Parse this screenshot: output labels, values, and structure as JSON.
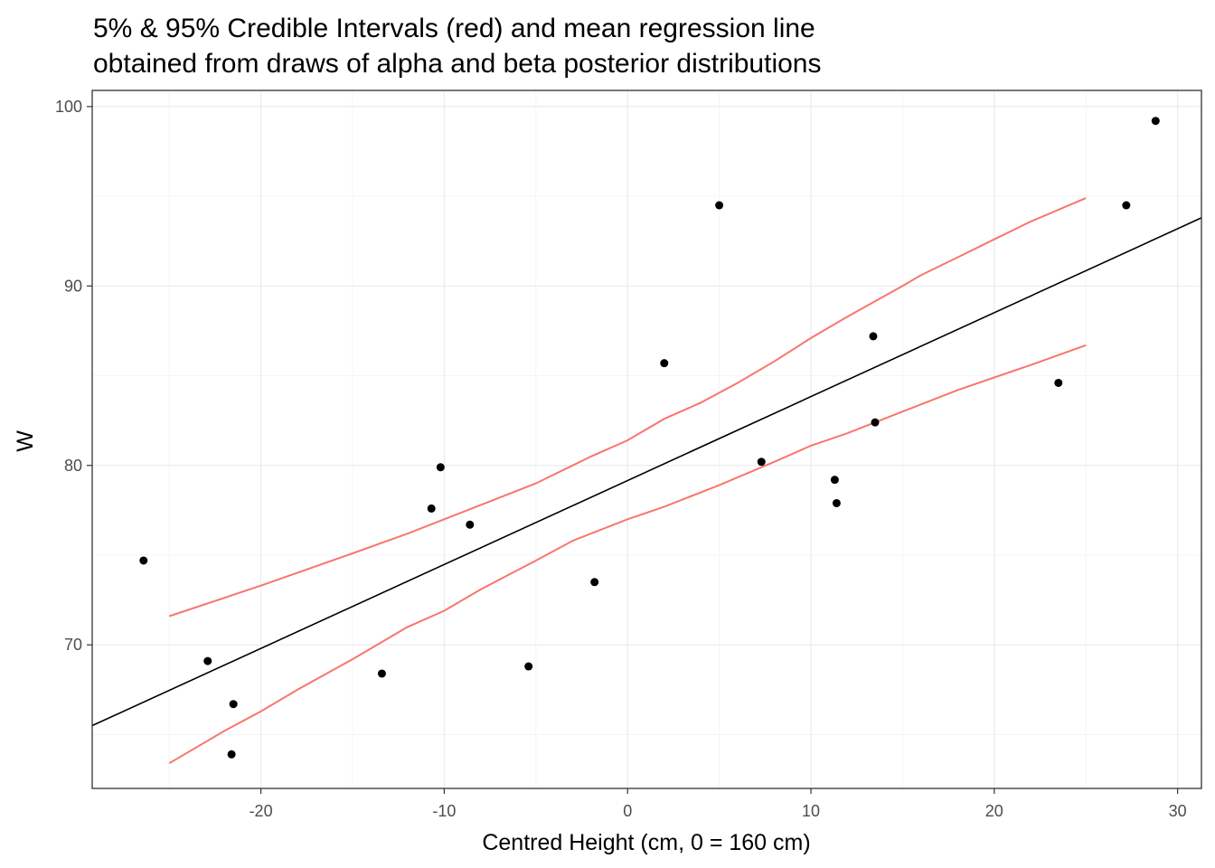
{
  "chart_data": {
    "type": "scatter",
    "title_lines": [
      "5% & 95% Credible Intervals (red) and mean regression line",
      "obtained from draws of alpha and beta posterior distributions"
    ],
    "xlabel": "Centred Height (cm, 0 = 160 cm)",
    "ylabel": "W",
    "xlim": [
      -29.2,
      31.3
    ],
    "ylim": [
      62.0,
      100.9
    ],
    "x_ticks": [
      -20,
      -10,
      0,
      10,
      20,
      30
    ],
    "x_tick_labels": [
      "-20",
      "-10",
      "0",
      "10",
      "20",
      "30"
    ],
    "y_ticks": [
      70,
      80,
      90,
      100
    ],
    "y_tick_labels": [
      "70",
      "80",
      "90",
      "100"
    ],
    "grid": true,
    "colors": {
      "points": "#000000",
      "mean_line": "#000000",
      "interval": "#F8766D",
      "grid_major": "#ebebeb",
      "grid_minor": "#f5f5f5",
      "panel_border": "#333333"
    },
    "points": [
      {
        "x": -26.4,
        "y": 74.7
      },
      {
        "x": -22.9,
        "y": 69.1
      },
      {
        "x": -21.5,
        "y": 66.7
      },
      {
        "x": -21.6,
        "y": 63.9
      },
      {
        "x": -13.4,
        "y": 68.4
      },
      {
        "x": -10.7,
        "y": 77.6
      },
      {
        "x": -10.2,
        "y": 79.9
      },
      {
        "x": -8.6,
        "y": 76.7
      },
      {
        "x": -5.4,
        "y": 68.8
      },
      {
        "x": -1.8,
        "y": 73.5
      },
      {
        "x": 2.0,
        "y": 85.7
      },
      {
        "x": 5.0,
        "y": 94.5
      },
      {
        "x": 7.3,
        "y": 80.2
      },
      {
        "x": 11.3,
        "y": 79.2
      },
      {
        "x": 11.4,
        "y": 77.9
      },
      {
        "x": 13.4,
        "y": 87.2
      },
      {
        "x": 13.5,
        "y": 82.4
      },
      {
        "x": 23.5,
        "y": 84.6
      },
      {
        "x": 27.2,
        "y": 94.5
      },
      {
        "x": 28.8,
        "y": 99.2
      }
    ],
    "mean_line": {
      "x": [
        -29.2,
        31.3
      ],
      "y": [
        65.5,
        93.8
      ]
    },
    "upper_interval": {
      "x": [
        -25,
        -20,
        -15,
        -12,
        -10,
        -8,
        -5,
        -2,
        0,
        2,
        4,
        6,
        8,
        10,
        12,
        15,
        16,
        18,
        20,
        22,
        25
      ],
      "y": [
        71.6,
        73.3,
        75.1,
        76.2,
        77.0,
        77.8,
        79.0,
        80.5,
        81.4,
        82.6,
        83.5,
        84.6,
        85.8,
        87.1,
        88.3,
        90.0,
        90.6,
        91.6,
        92.6,
        93.6,
        94.9
      ]
    },
    "lower_interval": {
      "x": [
        -25,
        -22,
        -20,
        -18,
        -15,
        -12,
        -10,
        -8,
        -5,
        -3,
        0,
        2,
        5,
        8,
        10,
        12,
        15,
        18,
        20,
        22,
        25
      ],
      "y": [
        63.4,
        65.2,
        66.3,
        67.5,
        69.2,
        71.0,
        71.9,
        73.1,
        74.7,
        75.8,
        77.0,
        77.7,
        78.9,
        80.2,
        81.1,
        81.8,
        83.0,
        84.2,
        84.9,
        85.6,
        86.7
      ]
    }
  }
}
